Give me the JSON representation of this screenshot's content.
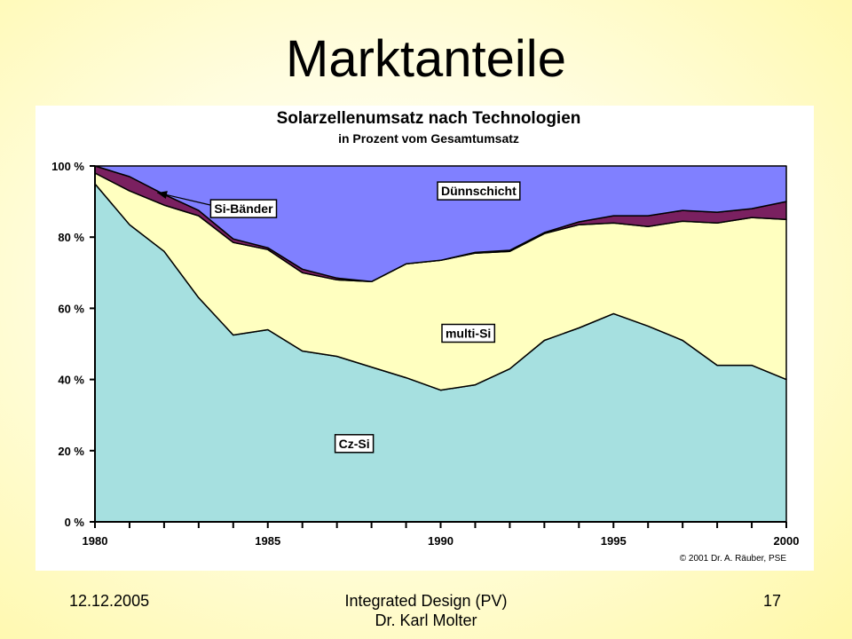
{
  "slide": {
    "title": "Marktanteile",
    "footer": {
      "date": "12.12.2005",
      "center_line1": "Integrated Design (PV)",
      "center_line2": "Dr. Karl Molter",
      "page": "17"
    }
  },
  "chart_data": {
    "type": "area",
    "stacked": true,
    "title": "Solarzellenumsatz nach Technologien",
    "subtitle": "in Prozent vom Gesamtumsatz",
    "copyright": "© 2001 Dr. A. Räuber, PSE",
    "x": [
      1980,
      1981,
      1982,
      1983,
      1984,
      1985,
      1986,
      1987,
      1988,
      1989,
      1990,
      1991,
      1992,
      1993,
      1994,
      1995,
      1996,
      1997,
      1998,
      1999,
      2000
    ],
    "xlim": [
      1980,
      2000
    ],
    "x_tick_labels": [
      "1980",
      "1985",
      "1990",
      "1995",
      "2000"
    ],
    "x_tick_values": [
      1980,
      1985,
      1990,
      1995,
      2000
    ],
    "ylim": [
      0,
      100
    ],
    "y_tick_labels": [
      "0 %",
      "20 %",
      "40 %",
      "60 %",
      "80 %",
      "100 %"
    ],
    "y_tick_values": [
      0,
      20,
      40,
      60,
      80,
      100
    ],
    "series": [
      {
        "name": "Cz-Si",
        "color": "#a6e0e0",
        "label_pos": [
          1987.5,
          22
        ],
        "values": [
          95,
          83.5,
          76,
          63,
          52.5,
          54,
          48,
          46.5,
          43.5,
          40.5,
          37,
          38.5,
          43,
          51,
          54.5,
          58.5,
          55,
          51,
          44,
          44,
          40
        ]
      },
      {
        "name": "multi-Si",
        "color": "#ffffc0",
        "label_pos": [
          1990.8,
          53
        ],
        "values": [
          3,
          9.5,
          13,
          23,
          26,
          22.5,
          22,
          21.5,
          24,
          32,
          36.5,
          37,
          33,
          30,
          29,
          25.5,
          28,
          33.5,
          40,
          41.5,
          45
        ]
      },
      {
        "name": "Si-Bänder",
        "color": "#7a2060",
        "label_pos": [
          1984.3,
          88
        ],
        "arrow_to": [
          1981.8,
          92.5
        ],
        "values": [
          2,
          4,
          3,
          1.5,
          1,
          0.5,
          1,
          0.5,
          0,
          0,
          0,
          0.2,
          0.3,
          0.3,
          0.8,
          2,
          3,
          3,
          3,
          2.5,
          5
        ]
      },
      {
        "name": "Dünnschicht",
        "color": "#8080ff",
        "label_pos": [
          1991.1,
          93
        ],
        "values": [
          0,
          3,
          8,
          12.5,
          20.5,
          23,
          29,
          31.5,
          32.5,
          27.5,
          26.5,
          24.3,
          23.7,
          18.7,
          15.7,
          14,
          14,
          12.5,
          13,
          12,
          10
        ]
      }
    ],
    "grid": false,
    "legend": "labels inside areas"
  }
}
